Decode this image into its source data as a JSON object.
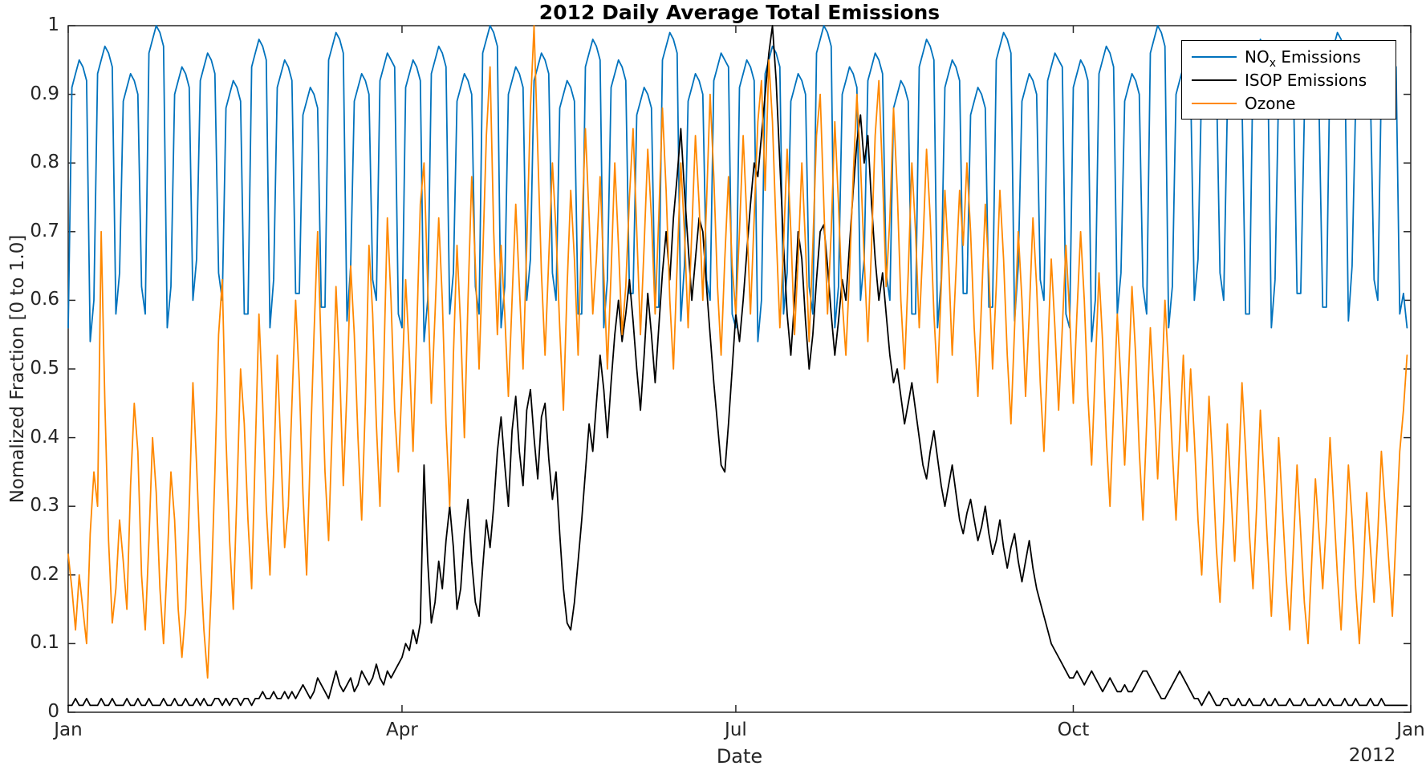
{
  "figure": {
    "background": "#ffffff",
    "axis_color": "#262626",
    "text_color": "#262626"
  },
  "legend": {
    "items": [
      {
        "pre": "NO",
        "sub": "x",
        "post": " Emissions"
      },
      {
        "pre": "ISOP Emissions",
        "sub": "",
        "post": ""
      },
      {
        "pre": "Ozone",
        "sub": "",
        "post": ""
      }
    ]
  },
  "chart_data": {
    "type": "line",
    "title": "2012 Daily Average Total Emissions",
    "xlabel": "Date",
    "ylabel": "Nomalized Fraction [0 to 1.0]",
    "grid": false,
    "legend_position": "top-right-inside",
    "x_axis": {
      "unit": "day of year 2012",
      "range_days": [
        1,
        367
      ],
      "tick_days": [
        1,
        92,
        183,
        275,
        367
      ],
      "tick_labels": [
        "Jan",
        "Apr",
        "Jul",
        "Oct",
        "Jan"
      ],
      "year_label": "2012"
    },
    "y_axis": {
      "range": [
        0,
        1
      ],
      "tick_values": [
        0,
        0.1,
        0.2,
        0.3,
        0.4,
        0.5,
        0.6,
        0.7,
        0.8,
        0.9,
        1
      ],
      "tick_labels": [
        "0",
        "0.1",
        "0.2",
        "0.3",
        "0.4",
        "0.5",
        "0.6",
        "0.7",
        "0.8",
        "0.9",
        "1"
      ]
    },
    "series": [
      {
        "name": "NOx Emissions",
        "color": "#0072bd",
        "line_width": 1.8,
        "values": [
          0.56,
          0.91,
          0.93,
          0.95,
          0.94,
          0.92,
          0.54,
          0.6,
          0.93,
          0.95,
          0.97,
          0.96,
          0.94,
          0.58,
          0.64,
          0.89,
          0.91,
          0.93,
          0.92,
          0.9,
          0.62,
          0.58,
          0.96,
          0.98,
          1.0,
          0.99,
          0.97,
          0.56,
          0.62,
          0.9,
          0.92,
          0.94,
          0.93,
          0.91,
          0.6,
          0.66,
          0.92,
          0.94,
          0.96,
          0.95,
          0.93,
          0.64,
          0.6,
          0.88,
          0.9,
          0.92,
          0.91,
          0.89,
          0.58,
          0.58,
          0.94,
          0.96,
          0.98,
          0.97,
          0.95,
          0.56,
          0.63,
          0.91,
          0.93,
          0.95,
          0.94,
          0.92,
          0.61,
          0.61,
          0.87,
          0.89,
          0.91,
          0.9,
          0.88,
          0.59,
          0.59,
          0.95,
          0.97,
          0.99,
          0.98,
          0.96,
          0.57,
          0.65,
          0.89,
          0.91,
          0.93,
          0.92,
          0.9,
          0.63,
          0.6,
          0.92,
          0.94,
          0.96,
          0.95,
          0.94,
          0.58,
          0.56,
          0.91,
          0.93,
          0.95,
          0.94,
          0.92,
          0.54,
          0.6,
          0.93,
          0.95,
          0.97,
          0.96,
          0.94,
          0.58,
          0.64,
          0.89,
          0.91,
          0.93,
          0.92,
          0.9,
          0.62,
          0.58,
          0.96,
          0.98,
          1.0,
          0.99,
          0.97,
          0.56,
          0.62,
          0.9,
          0.92,
          0.94,
          0.93,
          0.91,
          0.6,
          0.66,
          0.92,
          0.94,
          0.96,
          0.95,
          0.93,
          0.64,
          0.6,
          0.88,
          0.9,
          0.92,
          0.91,
          0.89,
          0.58,
          0.58,
          0.94,
          0.96,
          0.98,
          0.97,
          0.95,
          0.56,
          0.63,
          0.91,
          0.93,
          0.95,
          0.94,
          0.92,
          0.61,
          0.61,
          0.87,
          0.89,
          0.91,
          0.9,
          0.88,
          0.59,
          0.59,
          0.95,
          0.97,
          0.99,
          0.98,
          0.96,
          0.57,
          0.65,
          0.89,
          0.91,
          0.93,
          0.92,
          0.9,
          0.63,
          0.6,
          0.92,
          0.94,
          0.96,
          0.95,
          0.94,
          0.58,
          0.56,
          0.91,
          0.93,
          0.95,
          0.94,
          0.92,
          0.54,
          0.6,
          0.93,
          0.95,
          0.97,
          0.96,
          0.94,
          0.58,
          0.64,
          0.89,
          0.91,
          0.93,
          0.92,
          0.9,
          0.62,
          0.58,
          0.96,
          0.98,
          1.0,
          0.99,
          0.97,
          0.56,
          0.62,
          0.9,
          0.92,
          0.94,
          0.93,
          0.91,
          0.6,
          0.66,
          0.92,
          0.94,
          0.96,
          0.95,
          0.93,
          0.64,
          0.6,
          0.88,
          0.9,
          0.92,
          0.91,
          0.89,
          0.58,
          0.58,
          0.94,
          0.96,
          0.98,
          0.97,
          0.95,
          0.56,
          0.63,
          0.91,
          0.93,
          0.95,
          0.94,
          0.92,
          0.61,
          0.61,
          0.87,
          0.89,
          0.91,
          0.9,
          0.88,
          0.59,
          0.59,
          0.95,
          0.97,
          0.99,
          0.98,
          0.96,
          0.57,
          0.65,
          0.89,
          0.91,
          0.93,
          0.92,
          0.9,
          0.63,
          0.6,
          0.92,
          0.94,
          0.96,
          0.95,
          0.94,
          0.58,
          0.56,
          0.91,
          0.93,
          0.95,
          0.94,
          0.92,
          0.54,
          0.6,
          0.93,
          0.95,
          0.97,
          0.96,
          0.94,
          0.58,
          0.64,
          0.89,
          0.91,
          0.93,
          0.92,
          0.9,
          0.62,
          0.58,
          0.96,
          0.98,
          1.0,
          0.99,
          0.97,
          0.56,
          0.62,
          0.9,
          0.92,
          0.94,
          0.93,
          0.91,
          0.6,
          0.66,
          0.92,
          0.94,
          0.96,
          0.95,
          0.93,
          0.64,
          0.6,
          0.88,
          0.9,
          0.92,
          0.91,
          0.89,
          0.58,
          0.58,
          0.94,
          0.96,
          0.98,
          0.97,
          0.95,
          0.56,
          0.63,
          0.91,
          0.93,
          0.95,
          0.94,
          0.92,
          0.61,
          0.61,
          0.87,
          0.89,
          0.91,
          0.9,
          0.88,
          0.59,
          0.59,
          0.95,
          0.97,
          0.99,
          0.98,
          0.96,
          0.57,
          0.65,
          0.89,
          0.91,
          0.93,
          0.92,
          0.9,
          0.63,
          0.6,
          0.92,
          0.94,
          0.96,
          0.95,
          0.94,
          0.58,
          0.61,
          0.56
        ]
      },
      {
        "name": "ISOP Emissions",
        "color": "#000000",
        "line_width": 1.8,
        "values": [
          0.01,
          0.01,
          0.02,
          0.01,
          0.01,
          0.02,
          0.01,
          0.01,
          0.01,
          0.02,
          0.01,
          0.01,
          0.02,
          0.01,
          0.01,
          0.01,
          0.02,
          0.01,
          0.01,
          0.02,
          0.01,
          0.01,
          0.02,
          0.01,
          0.01,
          0.01,
          0.02,
          0.01,
          0.01,
          0.02,
          0.01,
          0.01,
          0.02,
          0.01,
          0.01,
          0.02,
          0.01,
          0.02,
          0.01,
          0.01,
          0.02,
          0.02,
          0.01,
          0.02,
          0.01,
          0.02,
          0.02,
          0.01,
          0.02,
          0.02,
          0.01,
          0.02,
          0.02,
          0.03,
          0.02,
          0.02,
          0.03,
          0.02,
          0.02,
          0.03,
          0.02,
          0.03,
          0.02,
          0.03,
          0.04,
          0.03,
          0.02,
          0.03,
          0.05,
          0.04,
          0.03,
          0.02,
          0.04,
          0.06,
          0.04,
          0.03,
          0.04,
          0.05,
          0.03,
          0.04,
          0.06,
          0.05,
          0.04,
          0.05,
          0.07,
          0.05,
          0.04,
          0.06,
          0.05,
          0.06,
          0.07,
          0.08,
          0.1,
          0.09,
          0.12,
          0.1,
          0.13,
          0.36,
          0.22,
          0.13,
          0.16,
          0.22,
          0.18,
          0.25,
          0.3,
          0.24,
          0.15,
          0.18,
          0.26,
          0.31,
          0.22,
          0.16,
          0.14,
          0.21,
          0.28,
          0.24,
          0.3,
          0.38,
          0.43,
          0.36,
          0.3,
          0.41,
          0.46,
          0.38,
          0.33,
          0.44,
          0.47,
          0.4,
          0.34,
          0.43,
          0.45,
          0.37,
          0.31,
          0.35,
          0.26,
          0.18,
          0.13,
          0.12,
          0.16,
          0.22,
          0.28,
          0.35,
          0.42,
          0.38,
          0.45,
          0.52,
          0.47,
          0.4,
          0.48,
          0.55,
          0.6,
          0.54,
          0.58,
          0.63,
          0.57,
          0.5,
          0.44,
          0.52,
          0.61,
          0.55,
          0.48,
          0.56,
          0.64,
          0.7,
          0.63,
          0.72,
          0.78,
          0.85,
          0.76,
          0.68,
          0.6,
          0.66,
          0.72,
          0.7,
          0.62,
          0.55,
          0.48,
          0.42,
          0.36,
          0.35,
          0.42,
          0.5,
          0.58,
          0.54,
          0.6,
          0.67,
          0.74,
          0.8,
          0.78,
          0.84,
          0.9,
          0.96,
          1.0,
          0.92,
          0.8,
          0.68,
          0.58,
          0.52,
          0.6,
          0.7,
          0.66,
          0.57,
          0.5,
          0.55,
          0.63,
          0.7,
          0.71,
          0.65,
          0.58,
          0.52,
          0.57,
          0.63,
          0.6,
          0.68,
          0.76,
          0.83,
          0.87,
          0.8,
          0.84,
          0.74,
          0.66,
          0.6,
          0.64,
          0.58,
          0.52,
          0.48,
          0.5,
          0.46,
          0.42,
          0.45,
          0.48,
          0.44,
          0.4,
          0.36,
          0.34,
          0.38,
          0.41,
          0.37,
          0.33,
          0.3,
          0.33,
          0.36,
          0.32,
          0.28,
          0.26,
          0.29,
          0.31,
          0.28,
          0.25,
          0.27,
          0.3,
          0.26,
          0.23,
          0.25,
          0.28,
          0.24,
          0.21,
          0.24,
          0.26,
          0.22,
          0.19,
          0.22,
          0.25,
          0.21,
          0.18,
          0.16,
          0.14,
          0.12,
          0.1,
          0.09,
          0.08,
          0.07,
          0.06,
          0.05,
          0.05,
          0.06,
          0.05,
          0.04,
          0.05,
          0.06,
          0.05,
          0.04,
          0.03,
          0.04,
          0.05,
          0.04,
          0.03,
          0.03,
          0.04,
          0.03,
          0.03,
          0.04,
          0.05,
          0.06,
          0.06,
          0.05,
          0.04,
          0.03,
          0.02,
          0.02,
          0.03,
          0.04,
          0.05,
          0.06,
          0.05,
          0.04,
          0.03,
          0.02,
          0.02,
          0.01,
          0.02,
          0.03,
          0.02,
          0.01,
          0.01,
          0.02,
          0.02,
          0.01,
          0.01,
          0.02,
          0.01,
          0.01,
          0.02,
          0.01,
          0.01,
          0.01,
          0.02,
          0.01,
          0.01,
          0.02,
          0.01,
          0.01,
          0.01,
          0.02,
          0.01,
          0.01,
          0.01,
          0.02,
          0.01,
          0.01,
          0.01,
          0.02,
          0.01,
          0.01,
          0.02,
          0.01,
          0.01,
          0.01,
          0.02,
          0.01,
          0.01,
          0.02,
          0.01,
          0.01,
          0.01,
          0.02,
          0.01,
          0.01,
          0.02,
          0.01,
          0.01,
          0.01,
          0.01,
          0.01,
          0.01,
          0.01
        ]
      },
      {
        "name": "Ozone",
        "color": "#ff8800",
        "line_width": 1.8,
        "values": [
          0.23,
          0.18,
          0.12,
          0.2,
          0.15,
          0.1,
          0.26,
          0.35,
          0.3,
          0.7,
          0.45,
          0.25,
          0.13,
          0.18,
          0.28,
          0.22,
          0.15,
          0.33,
          0.45,
          0.38,
          0.2,
          0.12,
          0.25,
          0.4,
          0.32,
          0.18,
          0.1,
          0.22,
          0.35,
          0.28,
          0.15,
          0.08,
          0.15,
          0.3,
          0.48,
          0.36,
          0.22,
          0.12,
          0.05,
          0.18,
          0.35,
          0.55,
          0.63,
          0.4,
          0.25,
          0.15,
          0.32,
          0.5,
          0.42,
          0.28,
          0.18,
          0.38,
          0.58,
          0.45,
          0.3,
          0.2,
          0.35,
          0.52,
          0.38,
          0.24,
          0.3,
          0.45,
          0.6,
          0.48,
          0.32,
          0.2,
          0.38,
          0.55,
          0.7,
          0.52,
          0.35,
          0.25,
          0.42,
          0.62,
          0.5,
          0.33,
          0.47,
          0.65,
          0.55,
          0.4,
          0.28,
          0.45,
          0.68,
          0.58,
          0.42,
          0.3,
          0.5,
          0.72,
          0.6,
          0.44,
          0.35,
          0.48,
          0.63,
          0.52,
          0.38,
          0.55,
          0.74,
          0.8,
          0.62,
          0.45,
          0.58,
          0.72,
          0.6,
          0.42,
          0.3,
          0.52,
          0.68,
          0.56,
          0.4,
          0.6,
          0.78,
          0.65,
          0.5,
          0.66,
          0.84,
          0.94,
          0.7,
          0.55,
          0.68,
          0.58,
          0.46,
          0.6,
          0.74,
          0.62,
          0.5,
          0.68,
          0.88,
          1.0,
          0.82,
          0.64,
          0.52,
          0.66,
          0.8,
          0.7,
          0.56,
          0.44,
          0.62,
          0.76,
          0.66,
          0.52,
          0.7,
          0.85,
          0.72,
          0.58,
          0.66,
          0.78,
          0.64,
          0.5,
          0.64,
          0.8,
          0.68,
          0.55,
          0.62,
          0.75,
          0.85,
          0.7,
          0.55,
          0.68,
          0.82,
          0.72,
          0.58,
          0.72,
          0.88,
          0.76,
          0.6,
          0.5,
          0.65,
          0.8,
          0.7,
          0.56,
          0.7,
          0.84,
          0.74,
          0.6,
          0.74,
          0.9,
          0.78,
          0.62,
          0.52,
          0.66,
          0.78,
          0.65,
          0.58,
          0.7,
          0.84,
          0.72,
          0.58,
          0.72,
          0.86,
          0.92,
          0.76,
          0.95,
          0.86,
          0.7,
          0.56,
          0.68,
          0.82,
          0.7,
          0.55,
          0.66,
          0.8,
          0.68,
          0.54,
          0.68,
          0.84,
          0.9,
          0.74,
          0.58,
          0.7,
          0.86,
          0.74,
          0.6,
          0.52,
          0.64,
          0.78,
          0.9,
          0.8,
          0.66,
          0.54,
          0.68,
          0.84,
          0.92,
          0.78,
          0.62,
          0.72,
          0.88,
          0.76,
          0.6,
          0.5,
          0.64,
          0.8,
          0.7,
          0.56,
          0.68,
          0.82,
          0.72,
          0.58,
          0.48,
          0.62,
          0.76,
          0.66,
          0.52,
          0.64,
          0.76,
          0.68,
          0.8,
          0.7,
          0.56,
          0.46,
          0.6,
          0.74,
          0.64,
          0.5,
          0.62,
          0.76,
          0.66,
          0.52,
          0.42,
          0.56,
          0.7,
          0.6,
          0.46,
          0.58,
          0.72,
          0.62,
          0.48,
          0.38,
          0.52,
          0.66,
          0.56,
          0.44,
          0.56,
          0.68,
          0.58,
          0.45,
          0.58,
          0.7,
          0.6,
          0.46,
          0.36,
          0.5,
          0.64,
          0.54,
          0.4,
          0.3,
          0.44,
          0.58,
          0.48,
          0.36,
          0.48,
          0.62,
          0.52,
          0.38,
          0.28,
          0.42,
          0.56,
          0.46,
          0.34,
          0.46,
          0.6,
          0.5,
          0.38,
          0.28,
          0.4,
          0.52,
          0.38,
          0.5,
          0.4,
          0.28,
          0.2,
          0.32,
          0.46,
          0.36,
          0.24,
          0.16,
          0.28,
          0.42,
          0.32,
          0.22,
          0.34,
          0.48,
          0.38,
          0.26,
          0.18,
          0.3,
          0.44,
          0.34,
          0.24,
          0.14,
          0.26,
          0.4,
          0.3,
          0.2,
          0.12,
          0.24,
          0.36,
          0.26,
          0.16,
          0.1,
          0.22,
          0.34,
          0.26,
          0.18,
          0.28,
          0.4,
          0.3,
          0.2,
          0.12,
          0.24,
          0.36,
          0.28,
          0.18,
          0.1,
          0.2,
          0.32,
          0.24,
          0.16,
          0.26,
          0.38,
          0.3,
          0.22,
          0.14,
          0.26,
          0.38,
          0.44,
          0.52
        ]
      }
    ]
  }
}
